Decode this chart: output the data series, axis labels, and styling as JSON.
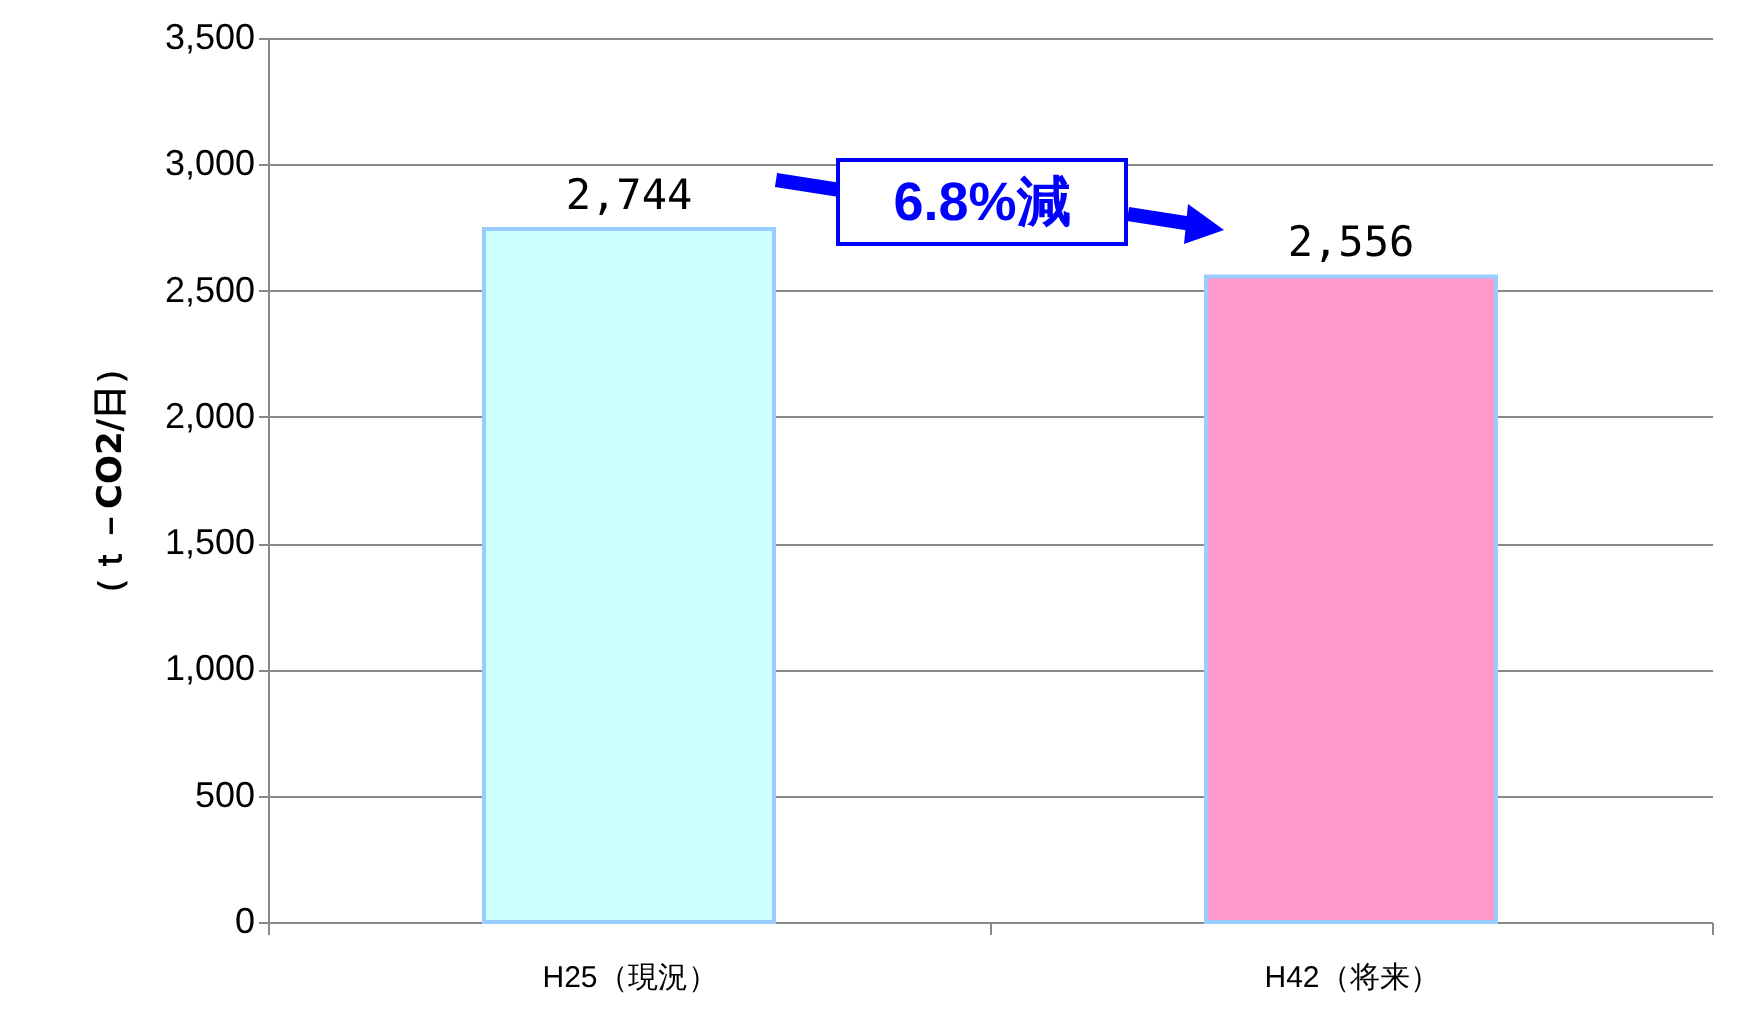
{
  "chart_data": {
    "type": "bar",
    "ylabel": "（ｔ－CO2/日）",
    "categories": [
      "H25（現況）",
      "H42（将来）"
    ],
    "values": [
      2744,
      2556
    ],
    "colors": [
      "#ccffff",
      "#ff99cc"
    ],
    "value_labels": [
      "2,744",
      "2,556"
    ],
    "ylim": [
      0,
      3500
    ],
    "yticks": [
      0,
      {
        "value": 500,
        "label": "500"
      },
      {
        "value": 1000,
        "label": "1,000"
      },
      {
        "value": 1500,
        "label": "1,500"
      },
      {
        "value": 2000,
        "label": "2,000"
      },
      {
        "value": 2500,
        "label": "2,500"
      },
      {
        "value": 3000,
        "label": "3,000"
      },
      {
        "value": 3500,
        "label": "3,500"
      }
    ],
    "grid": "y",
    "annotations": [
      "6.8%減"
    ]
  }
}
